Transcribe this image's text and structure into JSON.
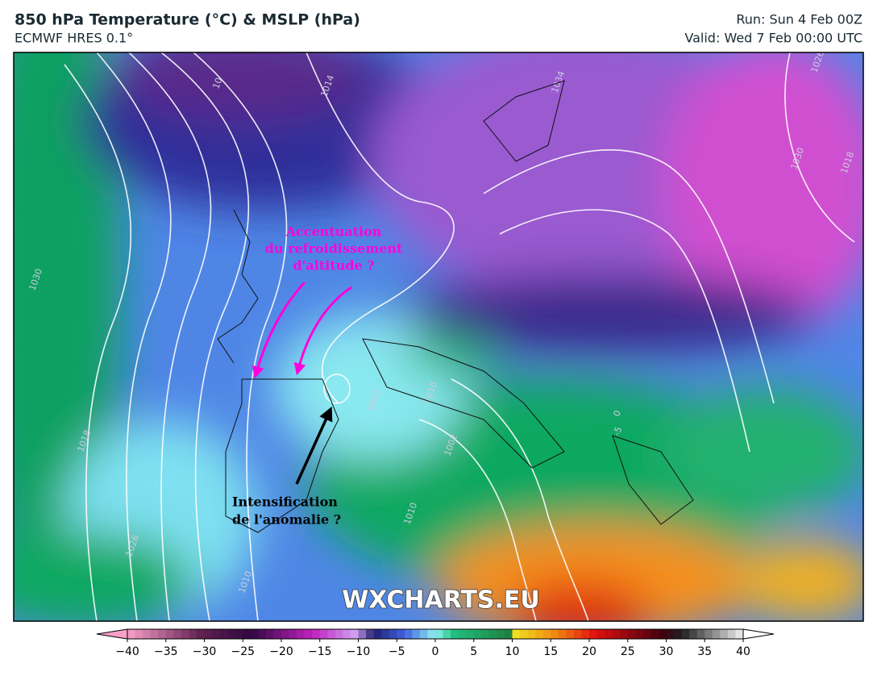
{
  "header": {
    "title": "850 hPa Temperature (°C) & MSLP (hPa)",
    "subtitle": "ECMWF HRES 0.1°",
    "run": "Run: Sun 4 Feb 00Z",
    "valid": "Valid: Wed 7 Feb 00:00 UTC"
  },
  "annotations": {
    "cooling": [
      "Accentuation",
      "du refroidissement",
      "d'altitude ?"
    ],
    "anomaly": [
      "Intensification",
      "de l'anomalie ?"
    ]
  },
  "watermark": "WXCHARTS.EU",
  "isobar_labels": [
    "1014",
    "10",
    "1030",
    "1018",
    "1026",
    "1034",
    "1022",
    "1030",
    "1010",
    "1002",
    "1010",
    "1018",
    "1026",
    "1010",
    "0",
    "-5"
  ],
  "colorbar": {
    "ticks": [
      {
        "value": -40,
        "label": "−40"
      },
      {
        "value": -35,
        "label": "−35"
      },
      {
        "value": -30,
        "label": "−30"
      },
      {
        "value": -25,
        "label": "−25"
      },
      {
        "value": -20,
        "label": "−20"
      },
      {
        "value": -15,
        "label": "−15"
      },
      {
        "value": -10,
        "label": "−10"
      },
      {
        "value": -5,
        "label": "−5"
      },
      0,
      5,
      10,
      15,
      20,
      25,
      30,
      35,
      40
    ]
  }
}
